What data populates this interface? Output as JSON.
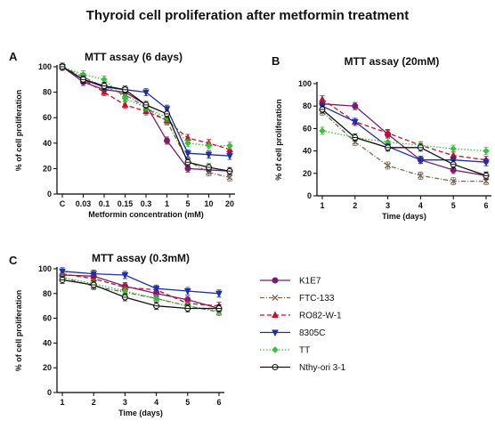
{
  "figure_title": "Thyroid cell proliferation after metformin treatment",
  "colors": {
    "K1E7": "#7b1c6e",
    "FTC-133": "#7a6a55",
    "RO82-W-1": "#c8102e",
    "8305C": "#1f2fa8",
    "TT": "#38c038",
    "Nthy-ori 3-1": "#111111"
  },
  "legend": {
    "placement": "right of panel C",
    "entries": [
      "K1E7",
      "FTC-133",
      "RO82-W-1",
      "8305C",
      "TT",
      "Nthy-ori 3-1"
    ]
  },
  "chart_data": [
    {
      "id": "A",
      "letter": "A",
      "type": "line",
      "title": "MTT assay (6 days)",
      "xlabel": "Metformin concentration  (mM)",
      "ylabel": "% of cell proliferation",
      "categories": [
        "C",
        "0.03",
        "0.1",
        "0.15",
        "0.3",
        "1",
        "5",
        "10",
        "20"
      ],
      "ylim": [
        0,
        100
      ],
      "yticks": [
        0,
        20,
        40,
        60,
        80,
        100
      ],
      "grid": false,
      "series": [
        {
          "name": "K1E7",
          "values": [
            100,
            88,
            82,
            80,
            70,
            42,
            20,
            19,
            18
          ]
        },
        {
          "name": "FTC-133",
          "values": [
            100,
            92,
            84,
            78,
            68,
            57,
            26,
            17,
            13
          ]
        },
        {
          "name": "RO82-W-1",
          "values": [
            100,
            90,
            80,
            70,
            65,
            58,
            44,
            40,
            35
          ]
        },
        {
          "name": "8305C",
          "values": [
            100,
            90,
            84,
            82,
            80,
            67,
            32,
            31,
            30
          ]
        },
        {
          "name": "TT",
          "values": [
            100,
            94,
            90,
            75,
            68,
            60,
            40,
            38,
            38
          ]
        },
        {
          "name": "Nthy-ori 3-1",
          "values": [
            100,
            90,
            85,
            82,
            70,
            63,
            25,
            21,
            18
          ]
        }
      ]
    },
    {
      "id": "B",
      "letter": "B",
      "type": "line",
      "title": "MTT assay (20mM)",
      "xlabel": "Time (days)",
      "ylabel": "% of cell proliferation",
      "categories": [
        "1",
        "2",
        "3",
        "4",
        "5",
        "6"
      ],
      "ylim": [
        0,
        100
      ],
      "yticks": [
        0,
        20,
        40,
        60,
        80,
        100
      ],
      "grid": false,
      "series": [
        {
          "name": "K1E7",
          "values": [
            82,
            80,
            55,
            32,
            23,
            18
          ]
        },
        {
          "name": "FTC-133",
          "values": [
            75,
            48,
            27,
            18,
            13,
            13
          ]
        },
        {
          "name": "RO82-W-1",
          "values": [
            86,
            66,
            56,
            45,
            36,
            32
          ]
        },
        {
          "name": "8305C",
          "values": [
            80,
            66,
            44,
            32,
            32,
            30
          ]
        },
        {
          "name": "TT",
          "values": [
            58,
            52,
            48,
            45,
            42,
            40
          ]
        },
        {
          "name": "Nthy-ori 3-1",
          "values": [
            77,
            52,
            43,
            43,
            28,
            18
          ]
        }
      ]
    },
    {
      "id": "C",
      "letter": "C",
      "type": "line",
      "title": "MTT assay (0.3mM)",
      "xlabel": "Time (days)",
      "ylabel": "% of cell proliferation",
      "categories": [
        "1",
        "2",
        "3",
        "4",
        "5",
        "6"
      ],
      "ylim": [
        0,
        100
      ],
      "yticks": [
        0,
        20,
        40,
        60,
        80,
        100
      ],
      "grid": false,
      "series": [
        {
          "name": "K1E7",
          "values": [
            95,
            94,
            86,
            80,
            75,
            68
          ]
        },
        {
          "name": "FTC-133",
          "values": [
            93,
            86,
            81,
            76,
            70,
            65
          ]
        },
        {
          "name": "RO82-W-1",
          "values": [
            96,
            92,
            85,
            83,
            72,
            70
          ]
        },
        {
          "name": "8305C",
          "values": [
            98,
            96,
            95,
            84,
            82,
            80
          ]
        },
        {
          "name": "TT",
          "values": [
            93,
            88,
            82,
            76,
            70,
            66
          ]
        },
        {
          "name": "Nthy-ori 3-1",
          "values": [
            91,
            87,
            77,
            70,
            68,
            68
          ]
        }
      ]
    }
  ]
}
